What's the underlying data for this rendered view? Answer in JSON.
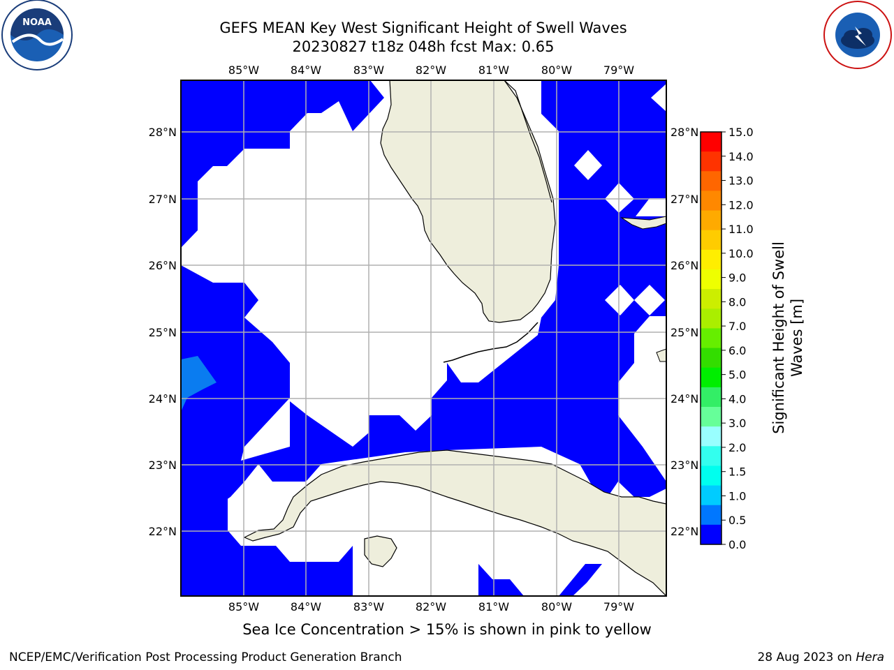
{
  "header": {
    "title_line1": "GEFS MEAN Key West Significant Height of Swell Waves",
    "title_line2": "20230827 t18z 048h fcst   Max: 0.65"
  },
  "logos": {
    "left": "noaa-logo",
    "right": "national-weather-service-logo",
    "left_text": "NOAA",
    "right_text": "NATIONAL WEATHER SERVICE"
  },
  "map": {
    "lon_labels": [
      "85°W",
      "84°W",
      "83°W",
      "82°W",
      "81°W",
      "80°W",
      "79°W"
    ],
    "lat_labels": [
      "28°N",
      "27°N",
      "26°N",
      "25°N",
      "24°N",
      "23°N",
      "22°N"
    ],
    "colors": {
      "land": "#eeeedc",
      "wave_low": "#0000ff",
      "wave_mid": "#0a7cf0",
      "grid": "#b0b0b0"
    }
  },
  "colorbar": {
    "ticks": [
      "15.0",
      "14.0",
      "13.0",
      "12.0",
      "11.0",
      "10.0",
      "9.0",
      "8.0",
      "7.0",
      "6.0",
      "5.0",
      "4.0",
      "3.0",
      "2.0",
      "1.5",
      "1.0",
      "0.5",
      "0.0"
    ],
    "colors": [
      "#ff0000",
      "#ff3300",
      "#ff6600",
      "#ff8800",
      "#ffaa00",
      "#ffcc00",
      "#ffee00",
      "#eeff00",
      "#ccee00",
      "#aaee00",
      "#66ee00",
      "#33dd00",
      "#00ee00",
      "#33ee66",
      "#66ff99",
      "#99ffff",
      "#33ffee",
      "#00ffee",
      "#00ccff",
      "#0077ff",
      "#0000ff"
    ],
    "label_line1": "Significant Height of Swell",
    "label_line2": "Waves [m]"
  },
  "note": "Sea Ice Concentration > 15% is shown in pink to yellow",
  "footer": {
    "left": "NCEP/EMC/Verification Post Processing Product Generation Branch",
    "right_prefix": "28 Aug 2023 on ",
    "right_machine": "Hera"
  }
}
